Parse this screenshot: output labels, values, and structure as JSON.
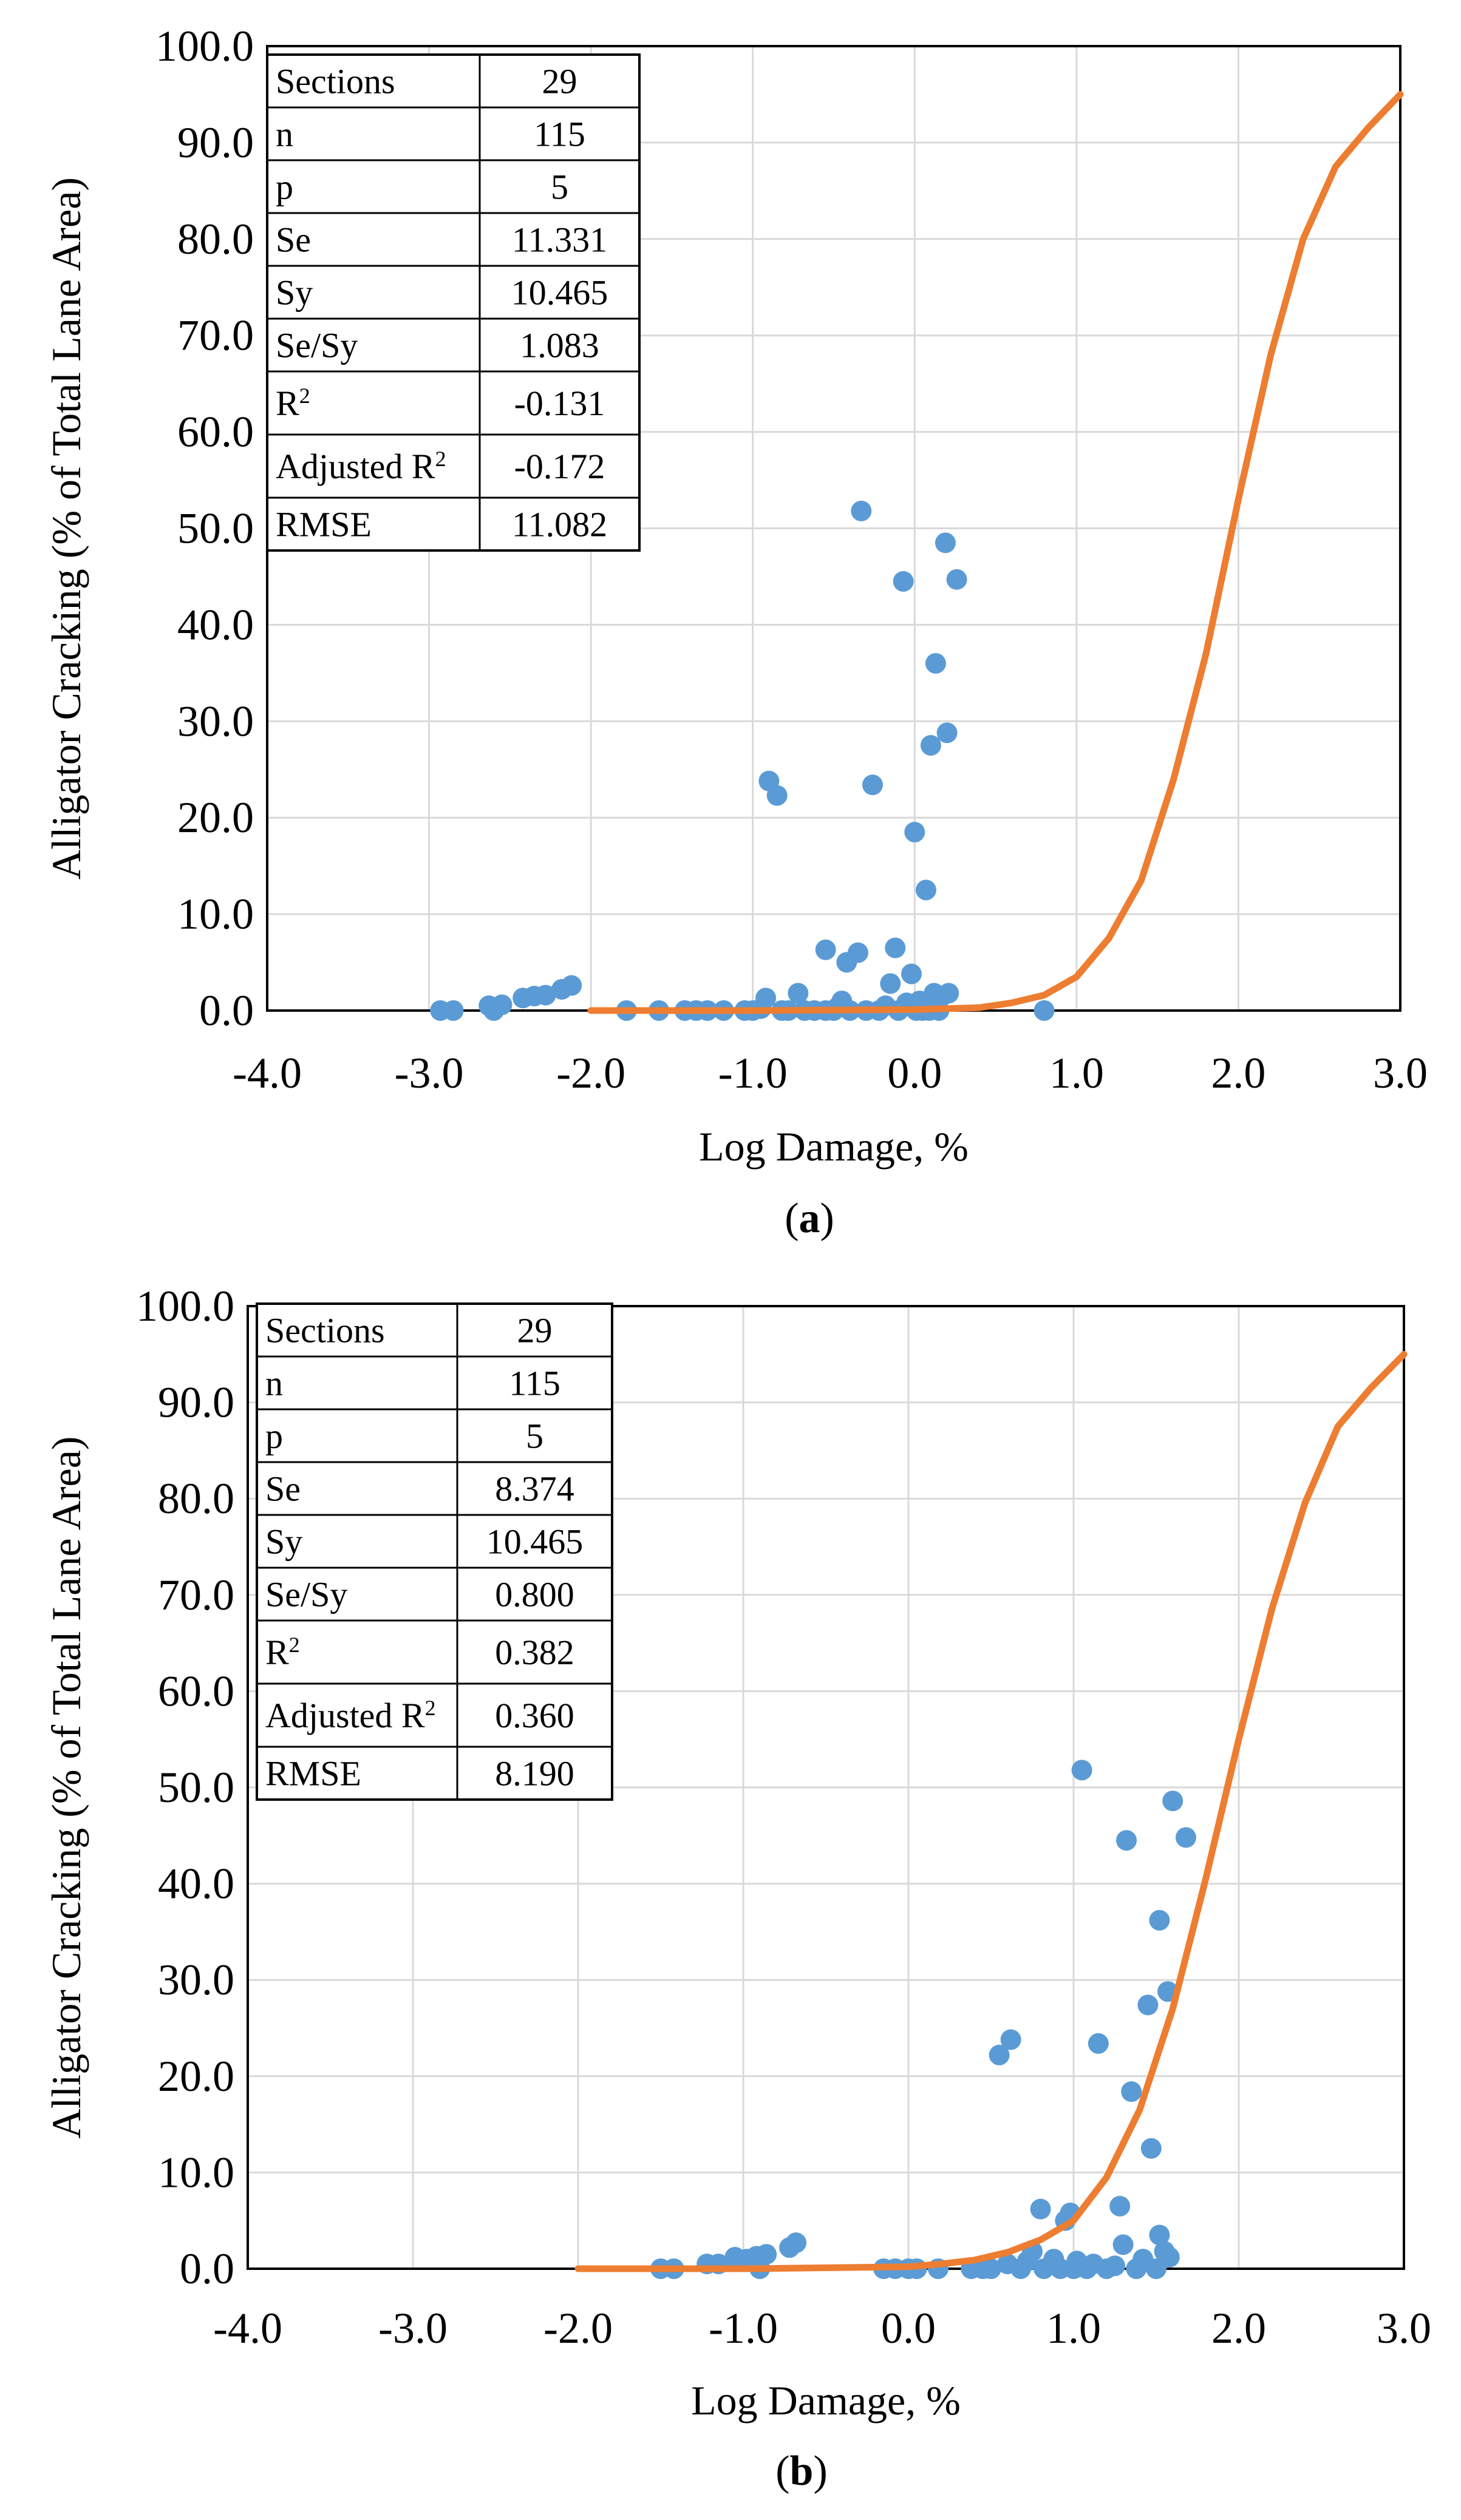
{
  "chart_data": [
    {
      "type": "scatter",
      "panel_label": "a",
      "xlabel": "Log Damage, %",
      "ylabel": "Alligator Cracking (% of Total Lane Area)",
      "xlim": [
        -4,
        3
      ],
      "ylim": [
        0,
        100
      ],
      "x_ticks": [
        "-4.0",
        "-3.0",
        "-2.0",
        "-1.0",
        "0.0",
        "1.0",
        "2.0",
        "3.0"
      ],
      "y_ticks": [
        "0.0",
        "10.0",
        "20.0",
        "30.0",
        "40.0",
        "50.0",
        "60.0",
        "70.0",
        "80.0",
        "90.0",
        "100.0"
      ],
      "grid": true,
      "colors": {
        "points": "#5b9bd5",
        "curve": "#ed7d31"
      },
      "stats_table": [
        {
          "label": "Sections",
          "sup": "",
          "value": "29"
        },
        {
          "label": "n",
          "sup": "",
          "value": "115"
        },
        {
          "label": "p",
          "sup": "",
          "value": "5"
        },
        {
          "label": "Se",
          "sup": "",
          "value": "11.331"
        },
        {
          "label": "Sy",
          "sup": "",
          "value": "10.465"
        },
        {
          "label": "Se/Sy",
          "sup": "",
          "value": "1.083"
        },
        {
          "label": "R",
          "sup": "2",
          "value": "-0.131"
        },
        {
          "label": "Adjusted R",
          "sup": "2",
          "value": "-0.172"
        },
        {
          "label": "RMSE",
          "sup": "",
          "value": "11.082"
        }
      ],
      "points": [
        [
          -2.93,
          0.0
        ],
        [
          -2.85,
          0.0
        ],
        [
          -2.63,
          0.5
        ],
        [
          -2.6,
          0.0
        ],
        [
          -2.55,
          0.6
        ],
        [
          -2.42,
          1.3
        ],
        [
          -2.35,
          1.5
        ],
        [
          -2.28,
          1.6
        ],
        [
          -2.18,
          2.2
        ],
        [
          -2.12,
          2.6
        ],
        [
          -1.78,
          0.0
        ],
        [
          -1.58,
          0.0
        ],
        [
          -1.42,
          0.0
        ],
        [
          -1.35,
          0.0
        ],
        [
          -1.28,
          0.0
        ],
        [
          -1.18,
          0.0
        ],
        [
          -1.05,
          0.0
        ],
        [
          -1.0,
          0.0
        ],
        [
          -0.95,
          0.2
        ],
        [
          -0.92,
          1.3
        ],
        [
          -0.9,
          23.8
        ],
        [
          -0.85,
          22.3
        ],
        [
          -0.82,
          0.0
        ],
        [
          -0.78,
          0.0
        ],
        [
          -0.72,
          1.8
        ],
        [
          -0.68,
          0.0
        ],
        [
          -0.62,
          0.0
        ],
        [
          -0.55,
          6.3
        ],
        [
          -0.55,
          0.0
        ],
        [
          -0.5,
          0.0
        ],
        [
          -0.48,
          0.3
        ],
        [
          -0.45,
          1.0
        ],
        [
          -0.42,
          5.0
        ],
        [
          -0.4,
          0.0
        ],
        [
          -0.35,
          6.0
        ],
        [
          -0.33,
          51.8
        ],
        [
          -0.3,
          0.0
        ],
        [
          -0.26,
          23.4
        ],
        [
          -0.22,
          0.0
        ],
        [
          -0.18,
          0.5
        ],
        [
          -0.15,
          2.8
        ],
        [
          -0.12,
          6.5
        ],
        [
          -0.1,
          0.0
        ],
        [
          -0.07,
          44.5
        ],
        [
          -0.05,
          0.8
        ],
        [
          -0.02,
          3.8
        ],
        [
          0.0,
          18.5
        ],
        [
          0.01,
          0.0
        ],
        [
          0.03,
          1.0
        ],
        [
          0.05,
          0.0
        ],
        [
          0.07,
          12.5
        ],
        [
          0.09,
          0.0
        ],
        [
          0.1,
          27.5
        ],
        [
          0.12,
          1.8
        ],
        [
          0.13,
          36.0
        ],
        [
          0.15,
          0.0
        ],
        [
          0.17,
          1.5
        ],
        [
          0.19,
          48.5
        ],
        [
          0.2,
          28.8
        ],
        [
          0.21,
          1.8
        ],
        [
          0.26,
          44.7
        ],
        [
          0.8,
          0.0
        ]
      ],
      "curve": [
        [
          -2.0,
          0.0
        ],
        [
          -1.0,
          0.0
        ],
        [
          0.0,
          0.1
        ],
        [
          0.4,
          0.3
        ],
        [
          0.6,
          0.8
        ],
        [
          0.8,
          1.6
        ],
        [
          1.0,
          3.5
        ],
        [
          1.2,
          7.5
        ],
        [
          1.4,
          13.5
        ],
        [
          1.6,
          24.0
        ],
        [
          1.8,
          37.0
        ],
        [
          2.0,
          53.0
        ],
        [
          2.2,
          68.0
        ],
        [
          2.4,
          80.0
        ],
        [
          2.6,
          87.5
        ],
        [
          2.8,
          91.5
        ],
        [
          3.0,
          95.0
        ]
      ]
    },
    {
      "type": "scatter",
      "panel_label": "b",
      "xlabel": "Log Damage, %",
      "ylabel": "Alligator Cracking (% of Total Lane Area)",
      "xlim": [
        -4,
        3
      ],
      "ylim": [
        0,
        100
      ],
      "x_ticks": [
        "-4.0",
        "-3.0",
        "-2.0",
        "-1.0",
        "0.0",
        "1.0",
        "2.0",
        "3.0"
      ],
      "y_ticks": [
        "0.0",
        "10.0",
        "20.0",
        "30.0",
        "40.0",
        "50.0",
        "60.0",
        "70.0",
        "80.0",
        "90.0",
        "100.0"
      ],
      "grid": true,
      "colors": {
        "points": "#5b9bd5",
        "curve": "#ed7d31"
      },
      "stats_table": [
        {
          "label": "Sections",
          "sup": "",
          "value": "29"
        },
        {
          "label": "n",
          "sup": "",
          "value": "115"
        },
        {
          "label": "p",
          "sup": "",
          "value": "5"
        },
        {
          "label": "Se",
          "sup": "",
          "value": "8.374"
        },
        {
          "label": "Sy",
          "sup": "",
          "value": "10.465"
        },
        {
          "label": "Se/Sy",
          "sup": "",
          "value": "0.800"
        },
        {
          "label": "R",
          "sup": "2",
          "value": "0.382"
        },
        {
          "label": "Adjusted R",
          "sup": "2",
          "value": "0.360"
        },
        {
          "label": "RMSE",
          "sup": "",
          "value": "8.190"
        }
      ],
      "points": [
        [
          -1.5,
          0.0
        ],
        [
          -1.42,
          0.0
        ],
        [
          -1.22,
          0.5
        ],
        [
          -1.15,
          0.5
        ],
        [
          -1.05,
          1.2
        ],
        [
          -0.98,
          1.0
        ],
        [
          -0.92,
          1.3
        ],
        [
          -0.9,
          0.0
        ],
        [
          -0.86,
          1.5
        ],
        [
          -0.72,
          2.2
        ],
        [
          -0.68,
          2.7
        ],
        [
          -0.15,
          0.0
        ],
        [
          -0.08,
          0.0
        ],
        [
          0.0,
          0.0
        ],
        [
          0.05,
          0.0
        ],
        [
          0.18,
          0.0
        ],
        [
          0.38,
          0.0
        ],
        [
          0.45,
          0.0
        ],
        [
          0.5,
          0.0
        ],
        [
          0.55,
          22.2
        ],
        [
          0.6,
          0.5
        ],
        [
          0.62,
          23.8
        ],
        [
          0.68,
          0.0
        ],
        [
          0.72,
          0.8
        ],
        [
          0.75,
          1.8
        ],
        [
          0.8,
          6.2
        ],
        [
          0.82,
          0.0
        ],
        [
          0.88,
          1.0
        ],
        [
          0.92,
          0.0
        ],
        [
          0.95,
          5.0
        ],
        [
          0.98,
          5.8
        ],
        [
          1.0,
          0.0
        ],
        [
          1.02,
          0.8
        ],
        [
          1.05,
          51.8
        ],
        [
          1.08,
          0.0
        ],
        [
          1.12,
          0.5
        ],
        [
          1.15,
          23.4
        ],
        [
          1.2,
          0.0
        ],
        [
          1.25,
          0.3
        ],
        [
          1.28,
          6.5
        ],
        [
          1.3,
          2.5
        ],
        [
          1.32,
          44.5
        ],
        [
          1.35,
          18.4
        ],
        [
          1.38,
          0.0
        ],
        [
          1.42,
          1.0
        ],
        [
          1.45,
          27.4
        ],
        [
          1.47,
          12.5
        ],
        [
          1.5,
          0.0
        ],
        [
          1.52,
          36.2
        ],
        [
          1.52,
          3.5
        ],
        [
          1.55,
          1.8
        ],
        [
          1.57,
          28.8
        ],
        [
          1.58,
          1.2
        ],
        [
          1.6,
          48.6
        ],
        [
          1.68,
          44.8
        ]
      ],
      "curve": [
        [
          -2.0,
          0.0
        ],
        [
          -1.0,
          0.0
        ],
        [
          0.0,
          0.2
        ],
        [
          0.2,
          0.5
        ],
        [
          0.4,
          0.9
        ],
        [
          0.6,
          1.7
        ],
        [
          0.8,
          3.0
        ],
        [
          1.0,
          5.0
        ],
        [
          1.2,
          9.5
        ],
        [
          1.4,
          16.5
        ],
        [
          1.6,
          27.0
        ],
        [
          1.8,
          40.5
        ],
        [
          2.0,
          55.0
        ],
        [
          2.2,
          68.5
        ],
        [
          2.4,
          79.5
        ],
        [
          2.6,
          87.5
        ],
        [
          2.8,
          91.5
        ],
        [
          3.0,
          95.0
        ]
      ]
    }
  ]
}
